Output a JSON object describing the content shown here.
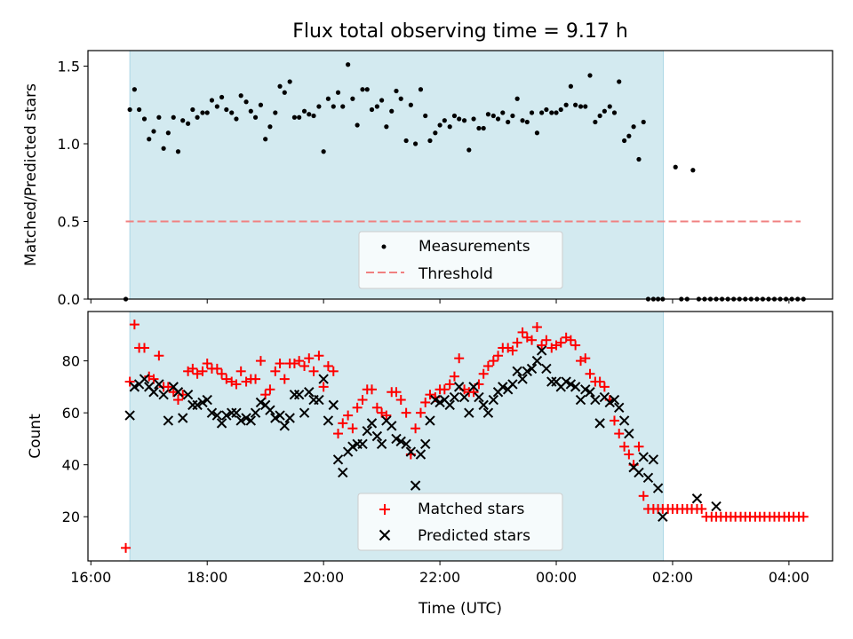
{
  "chart_data": [
    {
      "type": "scatter",
      "title": "Flux total observing time = 9.17 h",
      "ylabel": "Matched/Predicted stars",
      "xlabel": "",
      "x_unit": "hours since 16:00 UTC",
      "xlim": [
        -0.05,
        12.75
      ],
      "ylim": [
        0,
        1.6
      ],
      "yticks": [
        0.0,
        0.5,
        1.0,
        1.5
      ],
      "ytick_labels": [
        "0.0",
        "0.5",
        "1.0",
        "1.5"
      ],
      "shaded_region": {
        "x0": 0.67,
        "x1": 9.84,
        "color": "#d3eaf0"
      },
      "threshold": {
        "name": "Threshold",
        "y": 0.5,
        "x0": 0.6,
        "x1": 12.2,
        "color": "#f08080"
      },
      "legend": [
        "Measurements",
        "Threshold"
      ],
      "legend_position": "lower-center",
      "series": [
        {
          "name": "Measurements",
          "color": "#000000",
          "x": [
            0.6,
            0.67,
            0.75,
            0.83,
            0.92,
            1.0,
            1.08,
            1.17,
            1.25,
            1.33,
            1.42,
            1.5,
            1.58,
            1.67,
            1.75,
            1.83,
            1.92,
            2.0,
            2.08,
            2.17,
            2.25,
            2.33,
            2.42,
            2.5,
            2.58,
            2.67,
            2.75,
            2.83,
            2.92,
            3.0,
            3.08,
            3.17,
            3.25,
            3.33,
            3.42,
            3.5,
            3.58,
            3.67,
            3.75,
            3.83,
            3.92,
            4.0,
            4.08,
            4.17,
            4.25,
            4.33,
            4.42,
            4.5,
            4.58,
            4.67,
            4.75,
            4.83,
            4.92,
            5.0,
            5.08,
            5.17,
            5.25,
            5.33,
            5.42,
            5.5,
            5.58,
            5.67,
            5.75,
            5.83,
            5.92,
            6.0,
            6.08,
            6.17,
            6.25,
            6.33,
            6.42,
            6.5,
            6.58,
            6.67,
            6.75,
            6.83,
            6.92,
            7.0,
            7.08,
            7.17,
            7.25,
            7.33,
            7.42,
            7.5,
            7.58,
            7.67,
            7.75,
            7.83,
            7.92,
            8.0,
            8.08,
            8.17,
            8.25,
            8.33,
            8.42,
            8.5,
            8.58,
            8.67,
            8.75,
            8.83,
            8.92,
            9.0,
            9.08,
            9.17,
            9.25,
            9.33,
            9.42,
            9.5,
            9.58,
            9.67,
            9.75,
            9.83,
            10.05,
            10.15,
            10.25,
            10.35,
            10.45,
            10.55,
            10.65,
            10.75,
            10.85,
            10.95,
            11.05,
            11.15,
            11.25,
            11.35,
            11.45,
            11.55,
            11.65,
            11.75,
            11.85,
            11.95,
            12.05,
            12.15,
            12.25
          ],
          "y": [
            0.0,
            1.22,
            1.35,
            1.22,
            1.16,
            1.03,
            1.08,
            1.17,
            0.97,
            1.07,
            1.17,
            0.95,
            1.15,
            1.13,
            1.22,
            1.17,
            1.2,
            1.2,
            1.28,
            1.24,
            1.3,
            1.22,
            1.2,
            1.16,
            1.31,
            1.27,
            1.21,
            1.17,
            1.25,
            1.03,
            1.11,
            1.2,
            1.37,
            1.33,
            1.4,
            1.17,
            1.17,
            1.21,
            1.19,
            1.18,
            1.24,
            0.95,
            1.29,
            1.24,
            1.33,
            1.24,
            1.51,
            1.29,
            1.12,
            1.35,
            1.35,
            1.22,
            1.24,
            1.28,
            1.11,
            1.21,
            1.34,
            1.29,
            1.02,
            1.25,
            1.0,
            1.35,
            1.18,
            1.02,
            1.07,
            1.12,
            1.15,
            1.11,
            1.18,
            1.16,
            1.15,
            0.96,
            1.16,
            1.1,
            1.1,
            1.19,
            1.18,
            1.16,
            1.2,
            1.14,
            1.18,
            1.29,
            1.15,
            1.14,
            1.2,
            1.07,
            1.2,
            1.22,
            1.2,
            1.2,
            1.22,
            1.25,
            1.37,
            1.25,
            1.24,
            1.24,
            1.44,
            1.14,
            1.18,
            1.21,
            1.24,
            1.2,
            1.4,
            1.02,
            1.05,
            1.11,
            0.9,
            1.14,
            0.0,
            0.0,
            0.0,
            0.0,
            0.85,
            0.0,
            0.0,
            0.83,
            0.0,
            0.0,
            0.0,
            0.0,
            0.0,
            0.0,
            0.0,
            0.0,
            0.0,
            0.0,
            0.0,
            0.0,
            0.0,
            0.0,
            0.0,
            0.0,
            0.0,
            0.0,
            0.0
          ]
        }
      ]
    },
    {
      "type": "scatter",
      "title": "",
      "xlabel": "Time (UTC)",
      "ylabel": "Count",
      "x_unit": "hours since 16:00 UTC",
      "xlim": [
        -0.05,
        12.75
      ],
      "ylim": [
        3,
        99
      ],
      "yticks": [
        20,
        40,
        60,
        80
      ],
      "ytick_labels": [
        "20",
        "40",
        "60",
        "80"
      ],
      "xticks": [
        0,
        2,
        4,
        6,
        8,
        10,
        12
      ],
      "xtick_labels": [
        "16:00",
        "18:00",
        "20:00",
        "22:00",
        "00:00",
        "02:00",
        "04:00"
      ],
      "shaded_region": {
        "x0": 0.67,
        "x1": 9.84,
        "color": "#d3eaf0"
      },
      "legend": [
        "Matched stars",
        "Predicted stars"
      ],
      "legend_position": "lower-center",
      "series": [
        {
          "name": "Matched stars",
          "marker": "plus",
          "color": "#ff0000",
          "x": [
            0.6,
            0.67,
            0.75,
            0.83,
            0.92,
            1.0,
            1.08,
            1.17,
            1.25,
            1.33,
            1.42,
            1.5,
            1.58,
            1.67,
            1.75,
            1.83,
            1.92,
            2.0,
            2.08,
            2.17,
            2.25,
            2.33,
            2.42,
            2.5,
            2.58,
            2.67,
            2.75,
            2.83,
            2.92,
            3.0,
            3.08,
            3.17,
            3.25,
            3.33,
            3.42,
            3.5,
            3.58,
            3.67,
            3.75,
            3.83,
            3.92,
            4.0,
            4.08,
            4.17,
            4.25,
            4.33,
            4.42,
            4.5,
            4.58,
            4.67,
            4.75,
            4.83,
            4.92,
            5.0,
            5.08,
            5.17,
            5.25,
            5.33,
            5.42,
            5.5,
            5.58,
            5.67,
            5.75,
            5.83,
            5.92,
            6.0,
            6.08,
            6.17,
            6.25,
            6.33,
            6.42,
            6.5,
            6.58,
            6.67,
            6.75,
            6.83,
            6.92,
            7.0,
            7.08,
            7.17,
            7.25,
            7.33,
            7.42,
            7.5,
            7.58,
            7.67,
            7.75,
            7.83,
            7.92,
            8.0,
            8.08,
            8.17,
            8.25,
            8.33,
            8.42,
            8.5,
            8.58,
            8.67,
            8.75,
            8.83,
            8.92,
            9.0,
            9.08,
            9.17,
            9.25,
            9.33,
            9.42,
            9.5,
            9.58,
            9.67,
            9.75,
            9.83,
            9.92,
            10.0,
            10.08,
            10.17,
            10.25,
            10.33,
            10.42,
            10.5,
            10.58,
            10.67,
            10.75,
            10.83,
            10.92,
            11.0,
            11.08,
            11.17,
            11.25,
            11.33,
            11.42,
            11.5,
            11.58,
            11.67,
            11.75,
            11.83,
            11.92,
            12.0,
            12.08,
            12.17,
            12.25
          ],
          "y": [
            8,
            72,
            94,
            85,
            85,
            74,
            73,
            82,
            70,
            70,
            68,
            65,
            67,
            76,
            77,
            75,
            76,
            79,
            77,
            77,
            75,
            73,
            72,
            71,
            76,
            72,
            73,
            73,
            80,
            67,
            69,
            76,
            79,
            73,
            79,
            79,
            80,
            78,
            81,
            76,
            82,
            70,
            78,
            76,
            52,
            56,
            59,
            54,
            62,
            65,
            69,
            69,
            62,
            60,
            59,
            68,
            68,
            65,
            60,
            44,
            54,
            60,
            64,
            67,
            66,
            69,
            69,
            71,
            74,
            81,
            69,
            68,
            68,
            71,
            75,
            78,
            80,
            82,
            85,
            85,
            84,
            87,
            91,
            89,
            88,
            93,
            86,
            88,
            85,
            86,
            87,
            89,
            88,
            86,
            80,
            81,
            75,
            72,
            72,
            70,
            65,
            57,
            52,
            47,
            44,
            40,
            47,
            28,
            23,
            23,
            23,
            23,
            23,
            23,
            23,
            23,
            23,
            23,
            23,
            23,
            20,
            20,
            20,
            20,
            20,
            20,
            20,
            20,
            20,
            20,
            20,
            20,
            20,
            20,
            20,
            20,
            20,
            20,
            20,
            20,
            20
          ]
        },
        {
          "name": "Predicted stars",
          "marker": "x",
          "color": "#000000",
          "x": [
            0.67,
            0.75,
            0.83,
            0.92,
            1.0,
            1.08,
            1.17,
            1.25,
            1.33,
            1.42,
            1.5,
            1.58,
            1.67,
            1.75,
            1.83,
            1.92,
            2.0,
            2.08,
            2.17,
            2.25,
            2.33,
            2.42,
            2.5,
            2.58,
            2.67,
            2.75,
            2.83,
            2.92,
            3.0,
            3.08,
            3.17,
            3.25,
            3.33,
            3.42,
            3.5,
            3.58,
            3.67,
            3.75,
            3.83,
            3.92,
            4.0,
            4.08,
            4.17,
            4.25,
            4.33,
            4.42,
            4.5,
            4.58,
            4.67,
            4.75,
            4.83,
            4.92,
            5.0,
            5.08,
            5.17,
            5.25,
            5.33,
            5.42,
            5.5,
            5.58,
            5.67,
            5.75,
            5.83,
            5.92,
            6.0,
            6.08,
            6.17,
            6.25,
            6.33,
            6.42,
            6.5,
            6.58,
            6.67,
            6.75,
            6.83,
            6.92,
            7.0,
            7.08,
            7.17,
            7.25,
            7.33,
            7.42,
            7.5,
            7.58,
            7.67,
            7.75,
            7.83,
            7.92,
            8.0,
            8.08,
            8.17,
            8.25,
            8.33,
            8.42,
            8.5,
            8.58,
            8.67,
            8.75,
            8.83,
            8.92,
            9.0,
            9.08,
            9.17,
            9.25,
            9.33,
            9.42,
            9.5,
            9.58,
            9.67,
            9.75,
            9.83,
            10.42,
            10.75
          ],
          "y": [
            59,
            70,
            71,
            73,
            70,
            68,
            71,
            67,
            57,
            70,
            68,
            58,
            67,
            63,
            63,
            64,
            65,
            60,
            59,
            56,
            59,
            60,
            60,
            57,
            58,
            57,
            60,
            64,
            63,
            61,
            58,
            59,
            55,
            58,
            67,
            67,
            60,
            68,
            65,
            65,
            73,
            57,
            63,
            42,
            37,
            45,
            47,
            48,
            48,
            53,
            56,
            51,
            48,
            57,
            55,
            50,
            49,
            48,
            45,
            32,
            44,
            48,
            57,
            65,
            64,
            65,
            63,
            66,
            70,
            66,
            60,
            70,
            66,
            63,
            60,
            65,
            68,
            70,
            69,
            71,
            76,
            73,
            76,
            77,
            80,
            84,
            77,
            72,
            72,
            70,
            72,
            71,
            70,
            65,
            69,
            68,
            65,
            56,
            66,
            64,
            65,
            62,
            57,
            52,
            39,
            37,
            43,
            35,
            42,
            31,
            20,
            27,
            24
          ]
        }
      ]
    }
  ]
}
